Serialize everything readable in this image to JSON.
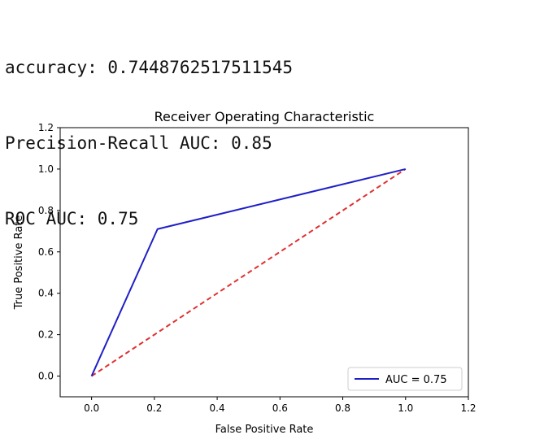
{
  "output": {
    "lines": [
      "accuracy: 0.7448762517511545",
      "Precision-Recall AUC: 0.85",
      "ROC AUC: 0.75"
    ]
  },
  "chart_data": {
    "type": "line",
    "title": "Receiver Operating Characteristic",
    "xlabel": "False Positive Rate",
    "ylabel": "True Positive Rate",
    "xlim": [
      -0.1,
      1.2
    ],
    "ylim": [
      -0.1,
      1.2
    ],
    "xticks": [
      0.0,
      0.2,
      0.4,
      0.6,
      0.8,
      1.0,
      1.2
    ],
    "yticks": [
      0.0,
      0.2,
      0.4,
      0.6,
      0.8,
      1.0,
      1.2
    ],
    "xtick_labels": [
      "0.0",
      "0.2",
      "0.4",
      "0.6",
      "0.8",
      "1.0",
      "1.2"
    ],
    "ytick_labels": [
      "0.0",
      "0.2",
      "0.4",
      "0.6",
      "0.8",
      "1.0",
      "1.2"
    ],
    "grid": false,
    "legend_position": "lower-right",
    "series": [
      {
        "name": "AUC = 0.75",
        "x": [
          0.0,
          0.21,
          1.0
        ],
        "y": [
          0.0,
          0.71,
          1.0
        ],
        "color": "#1f1fc8",
        "style": "solid"
      },
      {
        "x": [
          0.0,
          1.0
        ],
        "y": [
          0.0,
          1.0
        ],
        "color": "#e03030",
        "style": "dashed"
      }
    ]
  }
}
